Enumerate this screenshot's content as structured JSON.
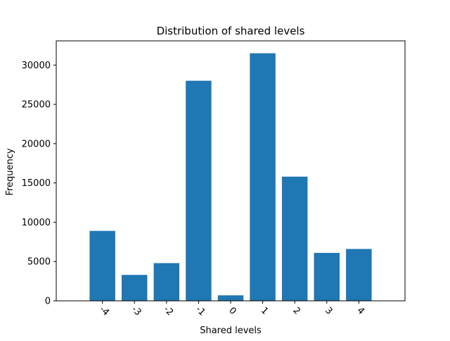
{
  "chart_data": {
    "type": "bar",
    "title": "Distribution of shared levels",
    "xlabel": "Shared levels",
    "ylabel": "Frequency",
    "categories": [
      "-4",
      "-3",
      "-2",
      "-1",
      "0",
      "1",
      "2",
      "3",
      "4"
    ],
    "values": [
      8900,
      3300,
      4800,
      28000,
      700,
      31500,
      15800,
      6100,
      6600
    ],
    "ylim": [
      0,
      33075
    ],
    "yticks": [
      0,
      5000,
      10000,
      15000,
      20000,
      25000,
      30000
    ],
    "ytick_labels": [
      "0",
      "5000",
      "10000",
      "15000",
      "20000",
      "25000",
      "30000"
    ],
    "grid": false,
    "bar_color": "#1f77b4",
    "xtick_rotation_deg": 45
  }
}
